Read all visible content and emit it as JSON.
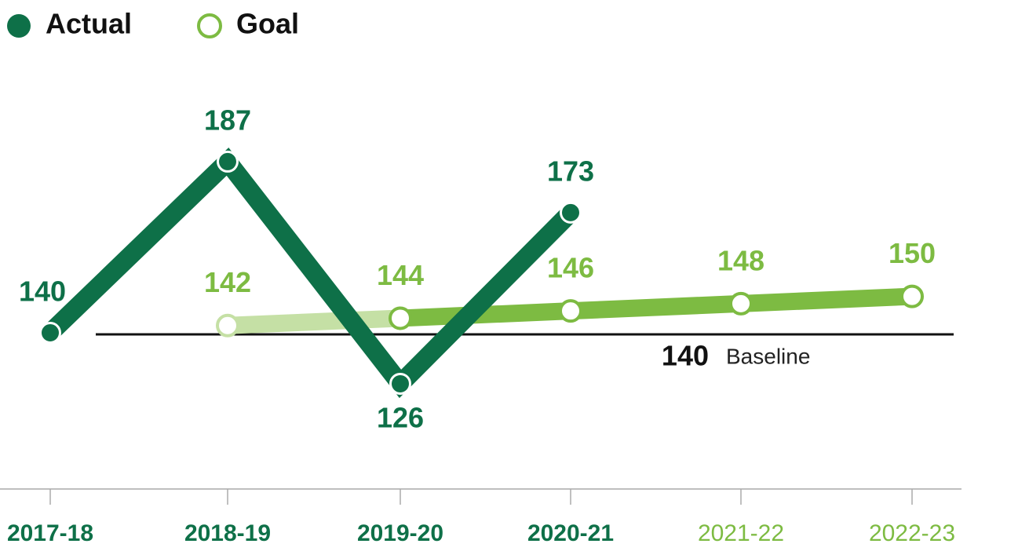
{
  "chart_data": {
    "type": "line",
    "categories": [
      "2017-18",
      "2018-19",
      "2019-20",
      "2020-21",
      "2021-22",
      "2022-23"
    ],
    "series": [
      {
        "name": "Actual",
        "color": "#0e7048",
        "values": [
          140,
          187,
          126,
          173,
          null,
          null
        ]
      },
      {
        "name": "Goal",
        "color": "#7dbb42",
        "faded_color": "#c5e0a5",
        "values": [
          null,
          142,
          144,
          146,
          148,
          150
        ]
      }
    ],
    "baseline": {
      "value": 140,
      "label": "Baseline"
    },
    "ylim": [
      110,
      200
    ],
    "legend": "top-left"
  }
}
